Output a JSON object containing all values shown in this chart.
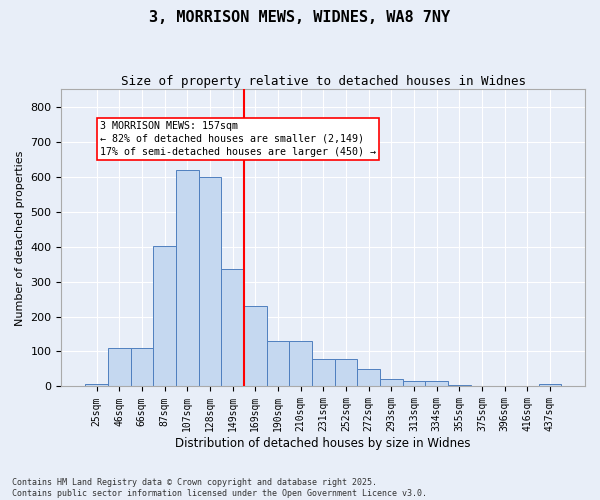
{
  "title": "3, MORRISON MEWS, WIDNES, WA8 7NY",
  "subtitle": "Size of property relative to detached houses in Widnes",
  "xlabel": "Distribution of detached houses by size in Widnes",
  "ylabel": "Number of detached properties",
  "bar_labels": [
    "25sqm",
    "46sqm",
    "66sqm",
    "87sqm",
    "107sqm",
    "128sqm",
    "149sqm",
    "169sqm",
    "190sqm",
    "210sqm",
    "231sqm",
    "252sqm",
    "272sqm",
    "293sqm",
    "313sqm",
    "334sqm",
    "355sqm",
    "375sqm",
    "396sqm",
    "416sqm",
    "437sqm"
  ],
  "bar_values": [
    8,
    110,
    110,
    403,
    620,
    598,
    335,
    230,
    130,
    130,
    78,
    78,
    50,
    20,
    15,
    15,
    5,
    0,
    0,
    0,
    8
  ],
  "bar_color": "#c5d8f0",
  "bar_edge_color": "#4f7fbf",
  "vline_color": "red",
  "annotation_text": "3 MORRISON MEWS: 157sqm\n← 82% of detached houses are smaller (2,149)\n17% of semi-detached houses are larger (450) →",
  "annotation_box_color": "white",
  "annotation_box_edge": "red",
  "ylim": [
    0,
    850
  ],
  "yticks": [
    0,
    100,
    200,
    300,
    400,
    500,
    600,
    700,
    800
  ],
  "footer": "Contains HM Land Registry data © Crown copyright and database right 2025.\nContains public sector information licensed under the Open Government Licence v3.0.",
  "background_color": "#e8eef8",
  "plot_background": "#e8eef8",
  "grid_color": "white",
  "title_fontsize": 11,
  "subtitle_fontsize": 9
}
